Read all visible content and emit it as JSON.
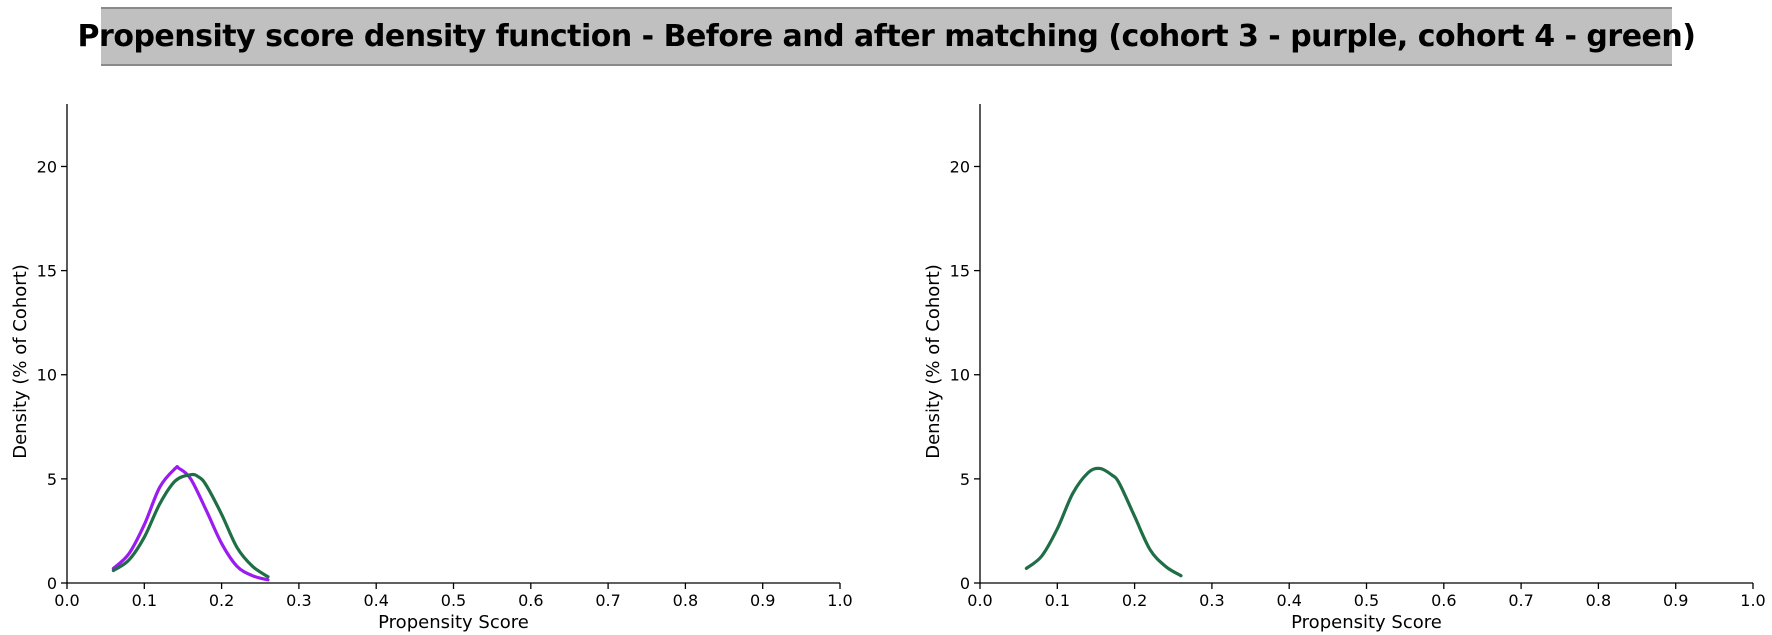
{
  "header": {
    "title": "Propensity score density function - Before and after matching (cohort 3 - purple, cohort 4 - green)"
  },
  "colors": {
    "cohort3": "#9b1bf0",
    "cohort4": "#1f6e45",
    "axis": "#000000"
  },
  "chart_data": [
    {
      "type": "line",
      "panel": "before-matching",
      "xlabel": "Propensity Score",
      "ylabel": "Density (% of Cohort)",
      "xlim": [
        0,
        1
      ],
      "ylim": [
        0,
        23
      ],
      "xticks": [
        "0.0",
        "0.1",
        "0.2",
        "0.3",
        "0.4",
        "0.5",
        "0.6",
        "0.7",
        "0.8",
        "0.9",
        "1.0"
      ],
      "yticks": [
        "0",
        "5",
        "10",
        "15",
        "20"
      ],
      "series": [
        {
          "color": "#9b1bf0",
          "x": [
            0.06,
            0.08,
            0.1,
            0.12,
            0.14,
            0.145,
            0.16,
            0.18,
            0.2,
            0.22,
            0.24,
            0.26
          ],
          "y": [
            0.7,
            1.4,
            2.8,
            4.6,
            5.5,
            5.5,
            5.0,
            3.5,
            1.9,
            0.8,
            0.35,
            0.15
          ]
        },
        {
          "color": "#1f6e45",
          "x": [
            0.06,
            0.08,
            0.1,
            0.12,
            0.14,
            0.16,
            0.17,
            0.18,
            0.2,
            0.22,
            0.24,
            0.26
          ],
          "y": [
            0.6,
            1.1,
            2.2,
            3.8,
            4.9,
            5.2,
            5.1,
            4.7,
            3.3,
            1.7,
            0.8,
            0.3
          ]
        }
      ]
    },
    {
      "type": "line",
      "panel": "after-matching",
      "xlabel": "Propensity Score",
      "ylabel": "Density (% of Cohort)",
      "xlim": [
        0,
        1
      ],
      "ylim": [
        0,
        23
      ],
      "xticks": [
        "0.0",
        "0.1",
        "0.2",
        "0.3",
        "0.4",
        "0.5",
        "0.6",
        "0.7",
        "0.8",
        "0.9",
        "1.0"
      ],
      "yticks": [
        "0",
        "5",
        "10",
        "15",
        "20"
      ],
      "series": [
        {
          "color": "#1f6e45",
          "x": [
            0.06,
            0.08,
            0.1,
            0.12,
            0.14,
            0.155,
            0.17,
            0.18,
            0.2,
            0.22,
            0.24,
            0.26
          ],
          "y": [
            0.7,
            1.3,
            2.6,
            4.3,
            5.3,
            5.5,
            5.2,
            4.8,
            3.2,
            1.6,
            0.8,
            0.35
          ]
        }
      ]
    }
  ]
}
